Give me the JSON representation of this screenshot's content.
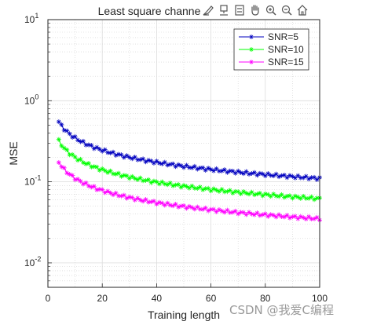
{
  "toolbar": {
    "icons": [
      "brush-icon",
      "data-tip-icon",
      "legend-icon",
      "pan-hand-icon",
      "zoom-in-icon",
      "zoom-out-icon",
      "home-icon"
    ]
  },
  "watermark": "CSDN @我爱C编程",
  "chart_data": {
    "type": "line",
    "title": "Least square channe",
    "xlabel": "Training length",
    "ylabel": "MSE",
    "xlim": [
      0,
      100
    ],
    "ylim": [
      0.005,
      10
    ],
    "yscale": "log",
    "grid": true,
    "minor_grid": true,
    "legend_position": "top-right",
    "x_ticks": [
      0,
      20,
      40,
      60,
      80,
      100
    ],
    "x_tick_labels": [
      "0",
      "20",
      "40",
      "60",
      "80",
      "100"
    ],
    "y_ticks": [
      0.01,
      0.1,
      1,
      10
    ],
    "y_tick_bases": [
      "10",
      "10",
      "10",
      "10"
    ],
    "y_tick_exponents": [
      "-2",
      "-1",
      "0",
      "1"
    ],
    "marker": "*",
    "x": {
      "start": 4,
      "end": 100,
      "step": 1
    },
    "series": [
      {
        "name": "SNR=5",
        "color": "#0000bf",
        "curve": {
          "type": "power",
          "at_start": 0.55,
          "at_end": 0.11
        }
      },
      {
        "name": "SNR=10",
        "color": "#00ff00",
        "curve": {
          "type": "power",
          "at_start": 0.32,
          "at_end": 0.062
        }
      },
      {
        "name": "SNR=15",
        "color": "#ff00ff",
        "curve": {
          "type": "power",
          "at_start": 0.175,
          "at_end": 0.035
        }
      }
    ]
  }
}
